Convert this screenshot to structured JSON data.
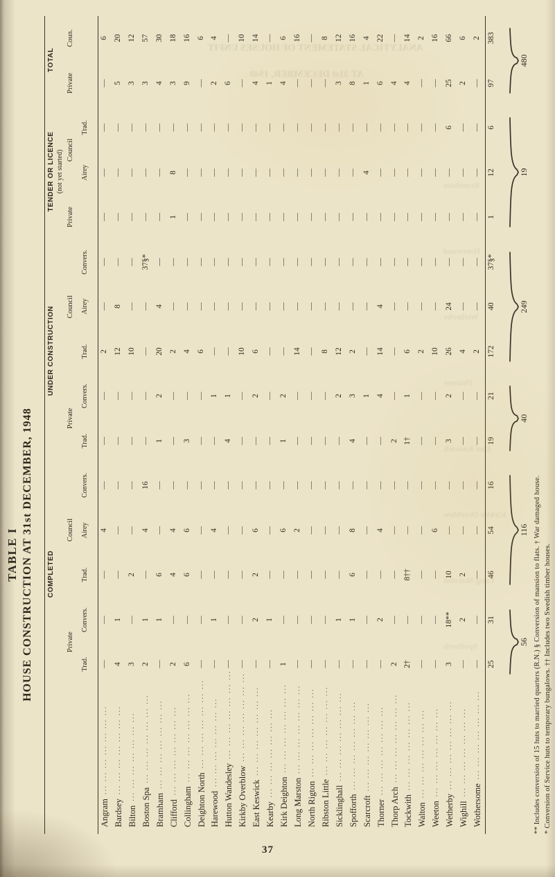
{
  "page": {
    "number": "37"
  },
  "title": {
    "line1": "TABLE I",
    "line2": "HOUSE CONSTRUCTION AT 31st DECEMBER, 1948"
  },
  "table": {
    "groups": [
      {
        "label": "COMPLETED",
        "note": "",
        "subs": [
          {
            "label": "Private",
            "leaves": [
              "Trad.",
              "Convers."
            ]
          },
          {
            "label": "Council",
            "leaves": [
              "Trad.",
              "Airey",
              "Convers."
            ]
          }
        ]
      },
      {
        "label": "UNDER CONSTRUCTION",
        "note": "",
        "subs": [
          {
            "label": "Private",
            "leaves": [
              "Trad.",
              "Convers."
            ]
          },
          {
            "label": "Council",
            "leaves": [
              "Trad.",
              "Airey",
              "Convers."
            ]
          }
        ]
      },
      {
        "label": "TENDER OR LICENCE",
        "note": "(not yet started)",
        "subs": [
          {
            "label": "Private",
            "leaves": [
              ""
            ]
          },
          {
            "label": "Council",
            "leaves": [
              "Airey",
              "Trad."
            ]
          }
        ]
      },
      {
        "label": "TOTAL",
        "note": "",
        "subs": [
          {
            "label": "",
            "leaves": [
              "Private",
              "Coun."
            ]
          }
        ]
      }
    ],
    "rows": [
      {
        "name": "Angram",
        "values": [
          "—",
          "—",
          "—",
          "4",
          "—",
          "—",
          "—",
          "2",
          "—",
          "—",
          "—",
          "—",
          "—",
          "—",
          "6"
        ]
      },
      {
        "name": "Bardsey",
        "values": [
          "4",
          "1",
          "—",
          "—",
          "—",
          "—",
          "—",
          "12",
          "8",
          "—",
          "—",
          "—",
          "—",
          "5",
          "20"
        ]
      },
      {
        "name": "Bilton",
        "values": [
          "3",
          "—",
          "2",
          "—",
          "—",
          "—",
          "—",
          "10",
          "—",
          "—",
          "—",
          "—",
          "—",
          "3",
          "12"
        ]
      },
      {
        "name": "Boston Spa",
        "values": [
          "2",
          "1",
          "—",
          "4",
          "16",
          "—",
          "—",
          "—",
          "—",
          "37§*",
          "—",
          "—",
          "—",
          "3",
          "57"
        ]
      },
      {
        "name": "Bramham",
        "values": [
          "—",
          "1",
          "6",
          "—",
          "—",
          "1",
          "2",
          "20",
          "4",
          "—",
          "—",
          "—",
          "—",
          "4",
          "30"
        ]
      },
      {
        "name": "Clifford",
        "values": [
          "2",
          "—",
          "4",
          "4",
          "—",
          "—",
          "—",
          "2",
          "—",
          "—",
          "1",
          "8",
          "—",
          "3",
          "18"
        ]
      },
      {
        "name": "Collingham",
        "values": [
          "6",
          "—",
          "6",
          "6",
          "—",
          "3",
          "—",
          "4",
          "—",
          "—",
          "—",
          "—",
          "—",
          "9",
          "16"
        ]
      },
      {
        "name": "Deighton North",
        "values": [
          "—",
          "—",
          "—",
          "—",
          "—",
          "—",
          "—",
          "6",
          "—",
          "—",
          "—",
          "—",
          "—",
          "—",
          "6"
        ]
      },
      {
        "name": "Harewood",
        "values": [
          "—",
          "1",
          "—",
          "4",
          "—",
          "—",
          "1",
          "—",
          "—",
          "—",
          "—",
          "—",
          "—",
          "2",
          "4"
        ]
      },
      {
        "name": "Hutton Wandesley",
        "values": [
          "—",
          "—",
          "—",
          "—",
          "—",
          "4",
          "1",
          "—",
          "—",
          "—",
          "—",
          "—",
          "—",
          "6",
          "—"
        ]
      },
      {
        "name": "Kirkby Overblow",
        "values": [
          "—",
          "—",
          "—",
          "—",
          "—",
          "—",
          "—",
          "10",
          "—",
          "—",
          "—",
          "—",
          "—",
          "—",
          "10"
        ]
      },
      {
        "name": "East Keswick",
        "values": [
          "—",
          "2",
          "2",
          "6",
          "—",
          "—",
          "2",
          "6",
          "—",
          "—",
          "—",
          "—",
          "—",
          "4",
          "14"
        ]
      },
      {
        "name": "Kearby",
        "values": [
          "—",
          "1",
          "—",
          "—",
          "—",
          "—",
          "—",
          "—",
          "—",
          "—",
          "—",
          "—",
          "—",
          "1",
          "—"
        ]
      },
      {
        "name": "Kirk Deighton",
        "values": [
          "1",
          "—",
          "—",
          "6",
          "—",
          "1",
          "2",
          "—",
          "—",
          "—",
          "—",
          "—",
          "—",
          "4",
          "6"
        ]
      },
      {
        "name": "Long Marston",
        "values": [
          "—",
          "—",
          "—",
          "2",
          "—",
          "—",
          "—",
          "14",
          "—",
          "—",
          "—",
          "—",
          "—",
          "—",
          "16"
        ]
      },
      {
        "name": "North Rigton",
        "values": [
          "—",
          "—",
          "—",
          "—",
          "—",
          "—",
          "—",
          "—",
          "—",
          "—",
          "—",
          "—",
          "—",
          "—",
          "—"
        ]
      },
      {
        "name": "Ribston Little",
        "values": [
          "—",
          "—",
          "—",
          "—",
          "—",
          "—",
          "—",
          "8",
          "—",
          "—",
          "—",
          "—",
          "—",
          "—",
          "8"
        ]
      },
      {
        "name": "Sicklinghall",
        "values": [
          "—",
          "1",
          "—",
          "—",
          "—",
          "—",
          "2",
          "12",
          "—",
          "—",
          "—",
          "—",
          "—",
          "3",
          "12"
        ]
      },
      {
        "name": "Spofforth",
        "values": [
          "—",
          "1",
          "6",
          "8",
          "—",
          "4",
          "3",
          "2",
          "—",
          "—",
          "—",
          "—",
          "—",
          "8",
          "16"
        ]
      },
      {
        "name": "Scarcroft",
        "values": [
          "—",
          "—",
          "—",
          "—",
          "—",
          "—",
          "1",
          "—",
          "—",
          "—",
          "—",
          "4",
          "—",
          "1",
          "4"
        ]
      },
      {
        "name": "Thorner",
        "values": [
          "—",
          "2",
          "—",
          "4",
          "—",
          "—",
          "4",
          "14",
          "4",
          "—",
          "—",
          "—",
          "—",
          "6",
          "22"
        ]
      },
      {
        "name": "Thorp Arch",
        "values": [
          "2",
          "—",
          "—",
          "—",
          "—",
          "2",
          "—",
          "—",
          "—",
          "—",
          "—",
          "—",
          "—",
          "4",
          "—"
        ]
      },
      {
        "name": "Tockwith",
        "values": [
          "2†",
          "—",
          "8††",
          "—",
          "—",
          "1†",
          "1",
          "6",
          "—",
          "—",
          "—",
          "—",
          "—",
          "4",
          "14"
        ]
      },
      {
        "name": "Walton",
        "values": [
          "—",
          "—",
          "—",
          "—",
          "—",
          "—",
          "—",
          "2",
          "—",
          "—",
          "—",
          "—",
          "—",
          "—",
          "2"
        ]
      },
      {
        "name": "Weeton",
        "values": [
          "—",
          "—",
          "—",
          "6",
          "—",
          "—",
          "—",
          "10",
          "—",
          "—",
          "—",
          "—",
          "—",
          "—",
          "16"
        ]
      },
      {
        "name": "Wetherby",
        "values": [
          "3",
          "18**",
          "10",
          "—",
          "—",
          "3",
          "2",
          "26",
          "24",
          "—",
          "—",
          "—",
          "6",
          "25",
          "66"
        ]
      },
      {
        "name": "Wighill",
        "values": [
          "—",
          "2",
          "2",
          "—",
          "—",
          "—",
          "—",
          "4",
          "—",
          "—",
          "—",
          "—",
          "—",
          "2",
          "6"
        ]
      },
      {
        "name": "Wothersome",
        "values": [
          "—",
          "—",
          "—",
          "—",
          "—",
          "—",
          "—",
          "2",
          "—",
          "—",
          "—",
          "—",
          "—",
          "—",
          "2"
        ]
      }
    ],
    "totals": [
      "25",
      "31",
      "46",
      "54",
      "16",
      "19",
      "21",
      "172",
      "40",
      "37§*",
      "1",
      "12",
      "6",
      "97",
      "383"
    ],
    "braces": [
      {
        "label": "56",
        "from": 0,
        "to": 1
      },
      {
        "label": "116",
        "from": 2,
        "to": 4
      },
      {
        "label": "40",
        "from": 5,
        "to": 6
      },
      {
        "label": "249",
        "from": 7,
        "to": 9
      },
      {
        "label": "19",
        "from": 10,
        "to": 12
      },
      {
        "label": "480",
        "from": 13,
        "to": 14
      }
    ]
  },
  "footnotes": [
    "** Includes conversion of 15 huts to married quarters (R.N.)      § Conversion of mansion to flats.      † War damaged house.",
    "* Conversion of Service huts to temporary bungalows.      †† Includes two Swedish timber houses."
  ],
  "ghosts": {
    "band1": "ANALYTICAL STATEMENT OF HOUSES UNFIT",
    "band2": "AT 31st DECEMBER, 1948",
    "names": [
      "Bramham",
      "Harewood",
      "Wetherby",
      "Thorner",
      "East Keswick",
      "Kirkby Overblow",
      "Long Marston",
      "Spofforth"
    ]
  }
}
